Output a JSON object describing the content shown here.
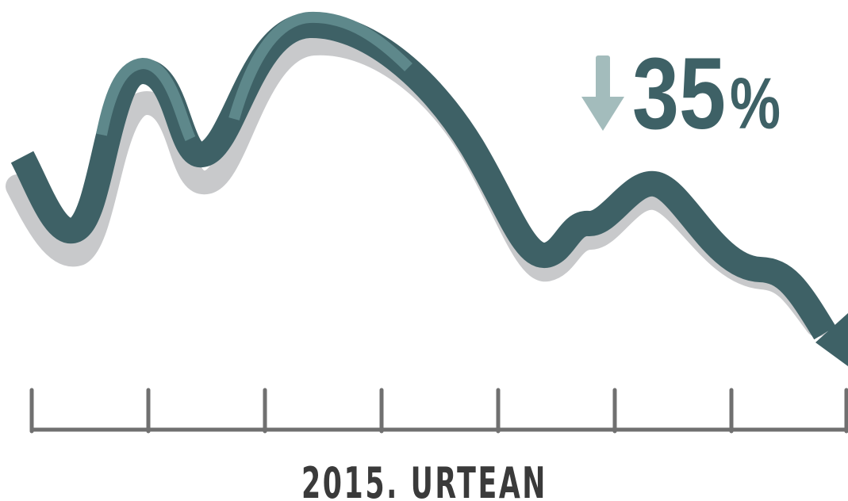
{
  "headline": {
    "number": "35",
    "unit": "%"
  },
  "caption": "2015. URTEAN"
}
